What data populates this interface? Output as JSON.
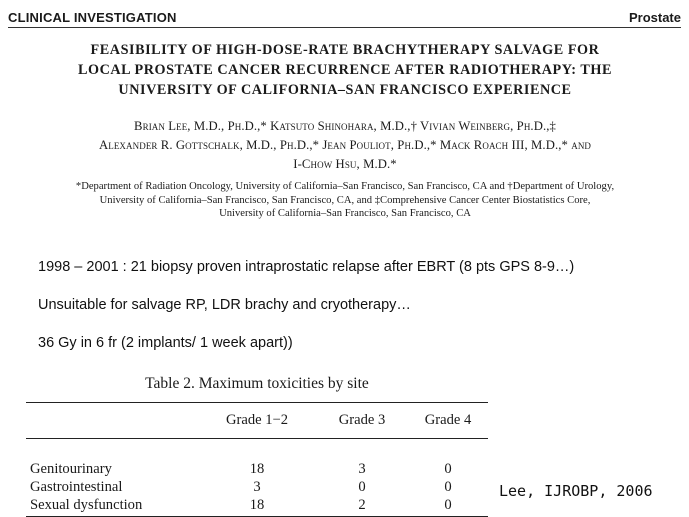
{
  "header": {
    "section": "CLINICAL INVESTIGATION",
    "topic": "Prostate"
  },
  "title": {
    "line1": "FEASIBILITY OF HIGH-DOSE-RATE BRACHYTHERAPY SALVAGE FOR",
    "line2": "LOCAL PROSTATE CANCER RECURRENCE AFTER RADIOTHERAPY: THE",
    "line3": "UNIVERSITY OF CALIFORNIA–SAN FRANCISCO EXPERIENCE"
  },
  "authors": {
    "line1": "Brian Lee, M.D., Ph.D.,* Katsuto Shinohara, M.D.,† Vivian Weinberg, Ph.D.,‡",
    "line2": "Alexander R. Gottschalk, M.D., Ph.D.,* Jean Pouliot, Ph.D.,* Mack Roach III, M.D.,* and",
    "line3": "I-Chow Hsu, M.D.*"
  },
  "affiliations": {
    "line1": "*Department of Radiation Oncology, University of California–San Francisco, San Francisco, CA and †Department of Urology,",
    "line2": "University of California–San Francisco, San Francisco, CA, and ‡Comprehensive Cancer Center Biostatistics Core,",
    "line3": "University of California–San Francisco, San Francisco, CA"
  },
  "bullets": [
    "1998 – 2001 : 21 biopsy proven intraprostatic relapse after EBRT (8 pts GPS 8-9…)",
    "Unsuitable for salvage RP, LDR brachy and cryotherapy…",
    "36 Gy in 6 fr (2 implants/ 1 week apart))"
  ],
  "table": {
    "caption": "Table 2. Maximum toxicities by site",
    "columns": [
      "",
      "Grade 1−2",
      "Grade 3",
      "Grade 4"
    ],
    "rows": [
      [
        "Genitourinary",
        "18",
        "3",
        "0"
      ],
      [
        "Gastrointestinal",
        "3",
        "0",
        "0"
      ],
      [
        "Sexual dysfunction",
        "18",
        "2",
        "0"
      ]
    ]
  },
  "citation": "Lee, IJROBP, 2006"
}
